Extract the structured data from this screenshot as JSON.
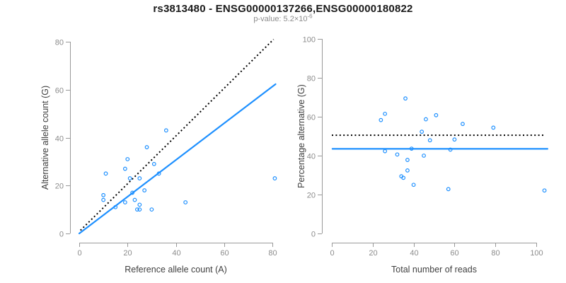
{
  "header": {
    "title": "rs3813480 - ENSG00000137266,ENSG00000180822",
    "subtitle_base": "p-value: 5.2×10",
    "subtitle_exponent": "-6"
  },
  "colors": {
    "accent_blue": "#1E90FF",
    "identity_line": "#000000",
    "axis": "#999999",
    "tick_label": "#8c8c8c",
    "axis_title": "#404040",
    "title_text": "#1a1a1a"
  },
  "chart_data": [
    {
      "type": "scatter",
      "name": "allele-counts-panel",
      "xlabel": "Reference allele count (A)",
      "ylabel": "Alternative allele count (G)",
      "xlim": [
        0,
        80
      ],
      "ylim": [
        0,
        80
      ],
      "xticks": [
        0,
        20,
        40,
        60,
        80
      ],
      "yticks": [
        0,
        20,
        40,
        60,
        80
      ],
      "grid": false,
      "points": [
        [
          10,
          14
        ],
        [
          10,
          16
        ],
        [
          11,
          25
        ],
        [
          15,
          11
        ],
        [
          19,
          13
        ],
        [
          19,
          27
        ],
        [
          20,
          31
        ],
        [
          21,
          23
        ],
        [
          22,
          17
        ],
        [
          23,
          14
        ],
        [
          24,
          10
        ],
        [
          25,
          10
        ],
        [
          25,
          12
        ],
        [
          25,
          23
        ],
        [
          27,
          18
        ],
        [
          28,
          36
        ],
        [
          30,
          10
        ],
        [
          31,
          29
        ],
        [
          33,
          25
        ],
        [
          36,
          43
        ],
        [
          44,
          13
        ],
        [
          81,
          23
        ]
      ],
      "lines": [
        {
          "name": "identity-line",
          "style": "dotted",
          "color": "#000000",
          "from": [
            0.5,
            1.3
          ],
          "to": [
            80.5,
            81
          ]
        },
        {
          "name": "regression-line",
          "style": "solid",
          "color": "#1E90FF",
          "from": [
            0,
            0
          ],
          "to": [
            81.3,
            62.3
          ]
        }
      ]
    },
    {
      "type": "scatter",
      "name": "percentage-panel",
      "xlabel": "Total number of reads",
      "ylabel": "Percentage alternative (G)",
      "xlim": [
        0,
        100
      ],
      "ylim": [
        0,
        100
      ],
      "xticks": [
        0,
        20,
        40,
        60,
        80,
        100
      ],
      "yticks": [
        0,
        20,
        40,
        60,
        80,
        100
      ],
      "grid": false,
      "points": [
        [
          24,
          58.3
        ],
        [
          26,
          61.5
        ],
        [
          36,
          69.4
        ],
        [
          26,
          42.3
        ],
        [
          32,
          40.6
        ],
        [
          46,
          58.7
        ],
        [
          51,
          60.8
        ],
        [
          44,
          52.3
        ],
        [
          39,
          43.6
        ],
        [
          37,
          37.8
        ],
        [
          34,
          29.4
        ],
        [
          35,
          28.6
        ],
        [
          37,
          32.4
        ],
        [
          48,
          47.9
        ],
        [
          45,
          40.0
        ],
        [
          64,
          56.3
        ],
        [
          40,
          25.0
        ],
        [
          60,
          48.3
        ],
        [
          58,
          43.1
        ],
        [
          79,
          54.4
        ],
        [
          57,
          22.8
        ],
        [
          104,
          22.1
        ]
      ],
      "lines": [
        {
          "name": "fifty-percent-line",
          "style": "dotted",
          "color": "#000000",
          "from": [
            0,
            50.5
          ],
          "to": [
            103.5,
            50.5
          ]
        },
        {
          "name": "mean-percentage-line",
          "style": "solid",
          "color": "#1E90FF",
          "from": [
            0.3,
            43.5
          ],
          "to": [
            105.5,
            43.5
          ]
        }
      ]
    }
  ]
}
